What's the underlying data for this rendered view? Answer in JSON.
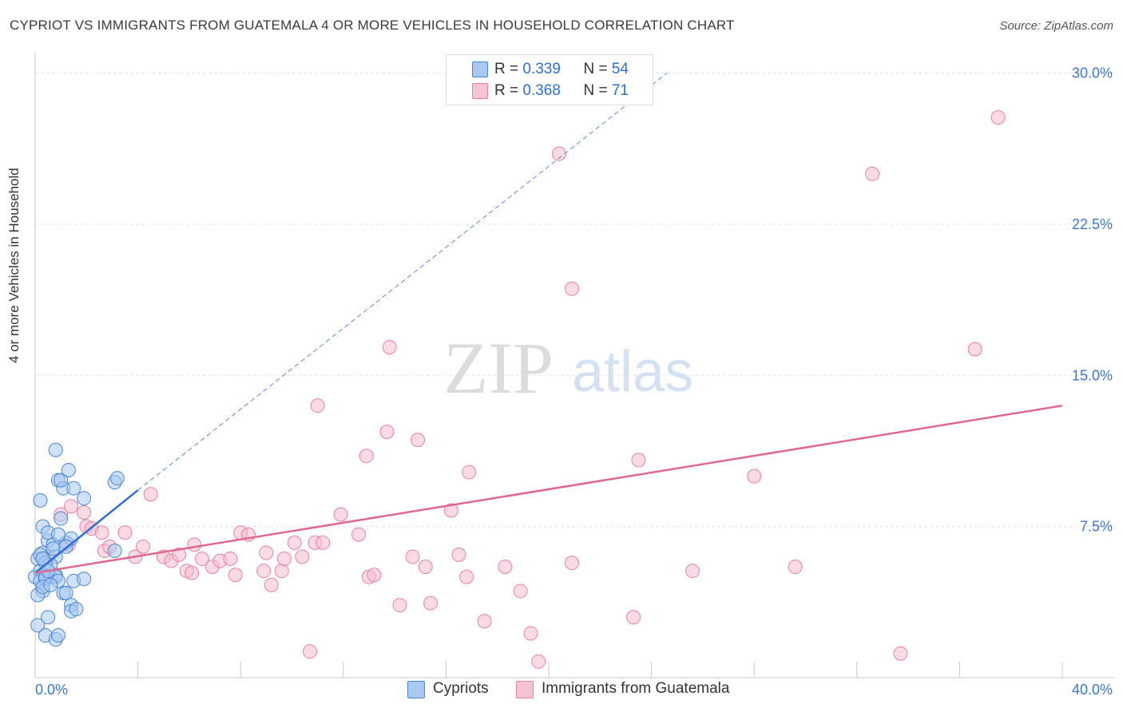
{
  "title": "CYPRIOT VS IMMIGRANTS FROM GUATEMALA 4 OR MORE VEHICLES IN HOUSEHOLD CORRELATION CHART",
  "source": "Source: ZipAtlas.com",
  "watermark": {
    "zip": "ZIP",
    "atlas": "atlas"
  },
  "legend": {
    "rows": [
      {
        "r_label": "R = ",
        "r_value": "0.339",
        "n_label": "N = ",
        "n_value": "54"
      },
      {
        "r_label": "R = ",
        "r_value": "0.368",
        "n_label": "N = ",
        "n_value": "71"
      }
    ],
    "bottom": [
      "Cypriots",
      "Immigrants from Guatemala"
    ]
  },
  "colors": {
    "blue_fill": "#a8c8f0",
    "blue_stroke": "#4a86d4",
    "blue_line": "#2d6fd6",
    "pink_fill": "#f5b8cb",
    "pink_stroke": "#e8829f",
    "pink_line": "#e0688e",
    "grid": "#e3e3e3",
    "tick_label": "#3b78d0"
  },
  "chart_data": {
    "type": "scatter",
    "title": "CYPRIOT VS IMMIGRANTS FROM GUATEMALA 4 OR MORE VEHICLES IN HOUSEHOLD CORRELATION CHART",
    "xlabel": "",
    "ylabel": "4 or more Vehicles in Household",
    "xlim": [
      0,
      40
    ],
    "ylim": [
      0,
      30.5
    ],
    "x_tick_labels": [
      "0.0%",
      "40.0%"
    ],
    "y_ticks": [
      7.5,
      15.0,
      22.5,
      30.0
    ],
    "y_tick_labels": [
      "7.5%",
      "15.0%",
      "22.5%",
      "30.0%"
    ],
    "series": [
      {
        "name": "Cypriots",
        "color": "blue",
        "points": [
          [
            0.0,
            5.0
          ],
          [
            0.1,
            5.9
          ],
          [
            0.2,
            5.3
          ],
          [
            0.2,
            4.8
          ],
          [
            0.3,
            6.2
          ],
          [
            0.3,
            4.3
          ],
          [
            0.4,
            4.9
          ],
          [
            0.5,
            6.8
          ],
          [
            0.6,
            5.0
          ],
          [
            0.7,
            6.6
          ],
          [
            0.8,
            5.1
          ],
          [
            1.0,
            7.9
          ],
          [
            1.2,
            6.7
          ],
          [
            1.4,
            6.9
          ],
          [
            0.2,
            8.8
          ],
          [
            0.3,
            7.5
          ],
          [
            0.5,
            7.2
          ],
          [
            0.8,
            6.0
          ],
          [
            0.6,
            5.6
          ],
          [
            0.4,
            5.0
          ],
          [
            0.1,
            4.1
          ],
          [
            0.3,
            4.5
          ],
          [
            0.8,
            5.0
          ],
          [
            0.9,
            4.8
          ],
          [
            1.5,
            4.8
          ],
          [
            1.1,
            4.2
          ],
          [
            0.8,
            11.3
          ],
          [
            0.9,
            9.8
          ],
          [
            1.1,
            9.4
          ],
          [
            1.0,
            9.8
          ],
          [
            1.3,
            10.3
          ],
          [
            1.5,
            9.4
          ],
          [
            1.9,
            8.9
          ],
          [
            3.1,
            9.7
          ],
          [
            3.2,
            9.9
          ],
          [
            3.1,
            6.3
          ],
          [
            1.9,
            4.9
          ],
          [
            1.2,
            4.2
          ],
          [
            1.4,
            3.6
          ],
          [
            1.4,
            3.3
          ],
          [
            1.6,
            3.4
          ],
          [
            0.5,
            3.0
          ],
          [
            0.1,
            2.6
          ],
          [
            0.4,
            2.1
          ],
          [
            0.8,
            1.9
          ],
          [
            0.9,
            2.1
          ],
          [
            0.2,
            6.1
          ],
          [
            0.7,
            6.4
          ],
          [
            0.4,
            5.7
          ],
          [
            0.9,
            7.1
          ],
          [
            1.2,
            6.5
          ],
          [
            0.6,
            4.6
          ],
          [
            0.5,
            5.3
          ],
          [
            0.3,
            5.9
          ]
        ]
      },
      {
        "name": "Immigrants from Guatemala",
        "color": "pink",
        "points": [
          [
            0.5,
            6.0
          ],
          [
            1.0,
            8.1
          ],
          [
            1.4,
            8.5
          ],
          [
            1.9,
            8.2
          ],
          [
            1.3,
            6.6
          ],
          [
            2.0,
            7.5
          ],
          [
            2.2,
            7.4
          ],
          [
            2.6,
            7.2
          ],
          [
            2.7,
            6.3
          ],
          [
            2.9,
            6.5
          ],
          [
            3.5,
            7.2
          ],
          [
            3.9,
            6.0
          ],
          [
            4.2,
            6.5
          ],
          [
            4.5,
            9.1
          ],
          [
            5.0,
            6.0
          ],
          [
            5.3,
            5.8
          ],
          [
            5.6,
            6.1
          ],
          [
            5.9,
            5.3
          ],
          [
            6.1,
            5.2
          ],
          [
            6.2,
            6.6
          ],
          [
            6.5,
            5.9
          ],
          [
            6.9,
            5.5
          ],
          [
            7.2,
            5.8
          ],
          [
            7.6,
            5.9
          ],
          [
            7.8,
            5.1
          ],
          [
            8.0,
            7.2
          ],
          [
            8.3,
            7.1
          ],
          [
            8.9,
            5.3
          ],
          [
            9.0,
            6.2
          ],
          [
            9.2,
            4.6
          ],
          [
            9.6,
            5.3
          ],
          [
            9.7,
            5.9
          ],
          [
            10.1,
            6.7
          ],
          [
            10.4,
            6.0
          ],
          [
            10.9,
            6.7
          ],
          [
            11.2,
            6.7
          ],
          [
            11.9,
            8.1
          ],
          [
            12.9,
            11.0
          ],
          [
            13.0,
            5.0
          ],
          [
            13.2,
            5.1
          ],
          [
            13.7,
            12.2
          ],
          [
            13.8,
            16.4
          ],
          [
            14.2,
            3.6
          ],
          [
            14.7,
            6.0
          ],
          [
            14.9,
            11.8
          ],
          [
            15.2,
            5.5
          ],
          [
            15.4,
            3.7
          ],
          [
            16.2,
            8.3
          ],
          [
            16.5,
            6.1
          ],
          [
            16.8,
            5.0
          ],
          [
            16.9,
            10.2
          ],
          [
            17.5,
            2.8
          ],
          [
            18.3,
            5.5
          ],
          [
            18.9,
            4.3
          ],
          [
            19.3,
            2.2
          ],
          [
            19.6,
            0.8
          ],
          [
            20.4,
            26.0
          ],
          [
            20.9,
            5.7
          ],
          [
            20.9,
            19.3
          ],
          [
            11.0,
            13.5
          ],
          [
            23.5,
            10.8
          ],
          [
            23.3,
            3.0
          ],
          [
            25.6,
            5.3
          ],
          [
            28.0,
            10.0
          ],
          [
            29.6,
            5.5
          ],
          [
            32.6,
            25.0
          ],
          [
            33.7,
            1.2
          ],
          [
            36.6,
            16.3
          ],
          [
            37.5,
            27.8
          ],
          [
            10.7,
            1.3
          ],
          [
            12.6,
            7.1
          ]
        ]
      }
    ],
    "trend_lines": [
      {
        "series": "Cypriots",
        "x": [
          0.0,
          4.0
        ],
        "y": [
          5.2,
          9.3
        ],
        "extended_x": [
          4.0,
          24.6
        ],
        "extended_y": [
          9.3,
          30.0
        ]
      },
      {
        "series": "Immigrants from Guatemala",
        "x": [
          0.0,
          40.0
        ],
        "y": [
          5.2,
          13.5
        ]
      }
    ]
  }
}
